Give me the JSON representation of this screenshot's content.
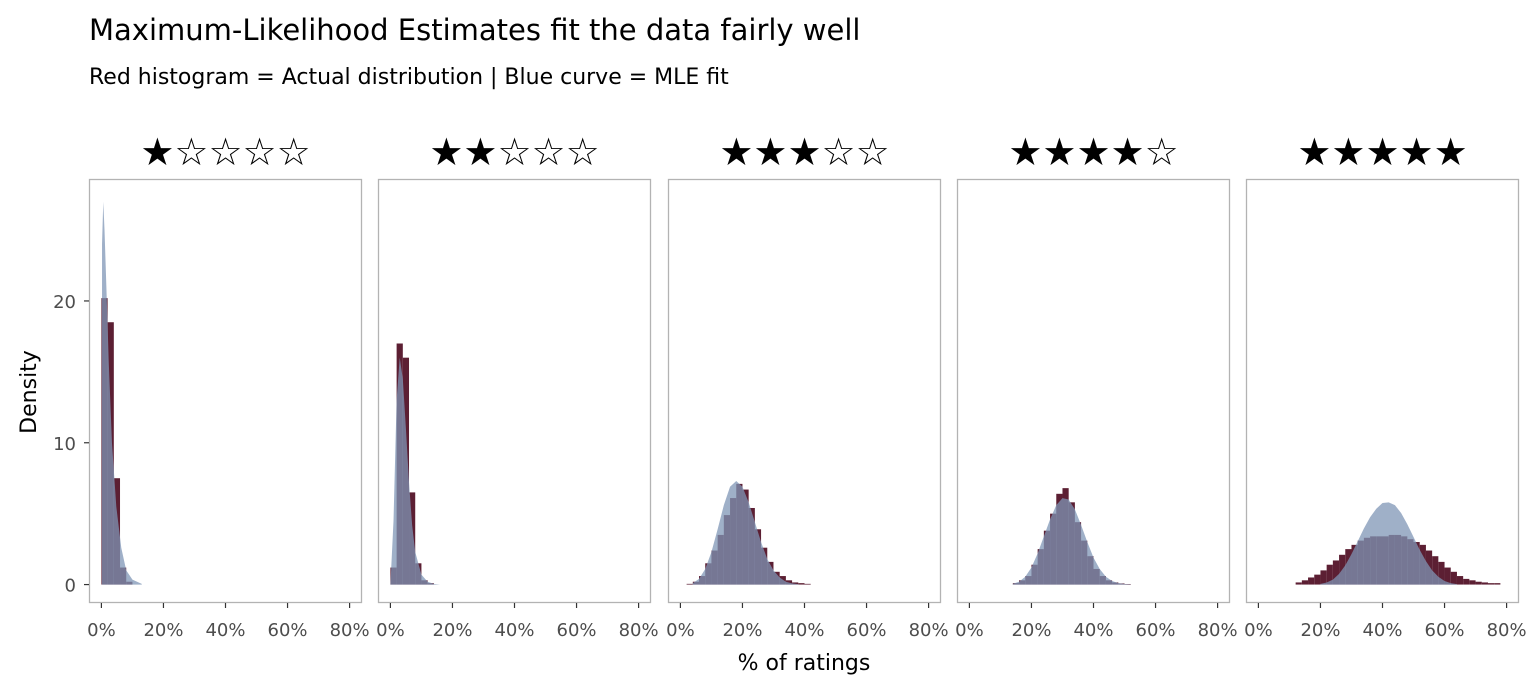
{
  "header": {
    "title": "Maximum-Likelihood Estimates fit the data fairly well",
    "subtitle": "Red histogram = Actual distribution | Blue curve = MLE fit"
  },
  "colors": {
    "histogram": "#5c1f33",
    "mle_fit": "#7f96b6",
    "panel_border": "#b3b3b3",
    "tick_text": "#4d4d4d"
  },
  "chart_data": {
    "type": "histogram",
    "title": "Maximum-Likelihood Estimates fit the data fairly well",
    "subtitle": "Red histogram = Actual distribution | Blue curve = MLE fit",
    "xlabel": "% of ratings",
    "ylabel": "Density",
    "xlim": [
      -0.04,
      0.84
    ],
    "ylim": [
      -1.3,
      28.6
    ],
    "x_ticks": [
      0,
      0.2,
      0.4,
      0.6,
      0.8
    ],
    "x_tick_labels": [
      "0%",
      "20%",
      "40%",
      "60%",
      "80%"
    ],
    "y_ticks": [
      0,
      10,
      20
    ],
    "y_tick_labels": [
      "0",
      "10",
      "20"
    ],
    "grid": false,
    "legend": "none",
    "bin_width": 0.02,
    "facets": [
      {
        "label": "★☆☆☆☆",
        "histogram": {
          "x": [
            0.0,
            0.02,
            0.04,
            0.06,
            0.08
          ],
          "density": [
            20.2,
            18.5,
            7.5,
            1.2,
            0.2
          ]
        },
        "mle_fit": {
          "x": [
            0.002,
            0.006,
            0.01,
            0.016,
            0.024,
            0.034,
            0.048,
            0.064,
            0.08,
            0.1,
            0.13
          ],
          "density": [
            24.0,
            27.0,
            25.0,
            21.0,
            15.5,
            10.0,
            5.5,
            2.6,
            1.0,
            0.35,
            0.05
          ]
        }
      },
      {
        "label": "★★☆☆☆",
        "histogram": {
          "x": [
            0.0,
            0.02,
            0.04,
            0.06,
            0.08,
            0.1,
            0.12
          ],
          "density": [
            1.2,
            17.0,
            16.0,
            6.5,
            1.5,
            0.3,
            0.1
          ]
        },
        "mle_fit": {
          "x": [
            0.0,
            0.01,
            0.02,
            0.03,
            0.04,
            0.05,
            0.06,
            0.07,
            0.08,
            0.1,
            0.12,
            0.14,
            0.16
          ],
          "density": [
            0,
            4.5,
            13.0,
            16.0,
            14.5,
            11.0,
            7.2,
            4.2,
            2.3,
            0.7,
            0.2,
            0.05,
            0
          ]
        }
      },
      {
        "label": "★★★☆☆",
        "histogram": {
          "x": [
            0.02,
            0.04,
            0.06,
            0.08,
            0.1,
            0.12,
            0.14,
            0.16,
            0.18,
            0.2,
            0.22,
            0.24,
            0.26,
            0.28,
            0.3,
            0.32,
            0.34,
            0.36,
            0.38,
            0.4
          ],
          "density": [
            0.05,
            0.2,
            0.6,
            1.5,
            2.4,
            3.5,
            4.9,
            6.1,
            7.1,
            6.7,
            5.4,
            3.9,
            2.6,
            1.6,
            0.9,
            0.6,
            0.3,
            0.15,
            0.1,
            0.05
          ]
        },
        "mle_fit": {
          "x": [
            0.04,
            0.06,
            0.08,
            0.1,
            0.12,
            0.14,
            0.16,
            0.18,
            0.2,
            0.22,
            0.24,
            0.26,
            0.28,
            0.3,
            0.32,
            0.34,
            0.36,
            0.38
          ],
          "density": [
            0.1,
            0.4,
            1.1,
            2.3,
            3.9,
            5.6,
            6.9,
            7.3,
            6.9,
            5.8,
            4.4,
            3.0,
            1.8,
            1.0,
            0.5,
            0.2,
            0.08,
            0.03
          ]
        }
      },
      {
        "label": "★★★★☆",
        "histogram": {
          "x": [
            0.14,
            0.16,
            0.18,
            0.2,
            0.22,
            0.24,
            0.26,
            0.28,
            0.3,
            0.32,
            0.34,
            0.36,
            0.38,
            0.4,
            0.42,
            0.44,
            0.46,
            0.48,
            0.5
          ],
          "density": [
            0.1,
            0.3,
            0.6,
            1.4,
            2.5,
            3.8,
            5.0,
            6.4,
            6.8,
            5.8,
            4.4,
            3.1,
            2.0,
            1.1,
            0.6,
            0.3,
            0.15,
            0.08,
            0.04
          ]
        },
        "mle_fit": {
          "x": [
            0.14,
            0.16,
            0.18,
            0.2,
            0.22,
            0.24,
            0.26,
            0.28,
            0.3,
            0.32,
            0.34,
            0.36,
            0.38,
            0.4,
            0.42,
            0.44,
            0.46,
            0.48,
            0.5,
            0.52
          ],
          "density": [
            0.05,
            0.2,
            0.55,
            1.2,
            2.2,
            3.4,
            4.6,
            5.6,
            6.1,
            6.0,
            5.3,
            4.2,
            3.0,
            1.9,
            1.1,
            0.55,
            0.25,
            0.1,
            0.04,
            0.01
          ]
        }
      },
      {
        "label": "★★★★★",
        "histogram": {
          "x": [
            0.12,
            0.14,
            0.16,
            0.18,
            0.2,
            0.22,
            0.24,
            0.26,
            0.28,
            0.3,
            0.32,
            0.34,
            0.36,
            0.38,
            0.4,
            0.42,
            0.44,
            0.46,
            0.48,
            0.5,
            0.52,
            0.54,
            0.56,
            0.58,
            0.6,
            0.62,
            0.64,
            0.66,
            0.68,
            0.7,
            0.72,
            0.74,
            0.76
          ],
          "density": [
            0.15,
            0.3,
            0.5,
            0.7,
            1.0,
            1.4,
            1.7,
            2.1,
            2.5,
            2.8,
            3.1,
            3.3,
            3.4,
            3.4,
            3.4,
            3.5,
            3.5,
            3.4,
            3.2,
            3.0,
            2.8,
            2.4,
            2.0,
            1.6,
            1.2,
            0.9,
            0.6,
            0.4,
            0.3,
            0.2,
            0.15,
            0.1,
            0.1
          ]
        },
        "mle_fit": {
          "x": [
            0.2,
            0.22,
            0.24,
            0.26,
            0.28,
            0.3,
            0.32,
            0.34,
            0.36,
            0.38,
            0.4,
            0.42,
            0.44,
            0.46,
            0.48,
            0.5,
            0.52,
            0.54,
            0.56,
            0.58,
            0.6,
            0.62,
            0.64
          ],
          "density": [
            0.05,
            0.15,
            0.35,
            0.75,
            1.35,
            2.15,
            3.05,
            3.95,
            4.75,
            5.35,
            5.75,
            5.8,
            5.6,
            5.05,
            4.25,
            3.35,
            2.45,
            1.65,
            1.0,
            0.55,
            0.25,
            0.1,
            0.03
          ]
        }
      }
    ]
  }
}
